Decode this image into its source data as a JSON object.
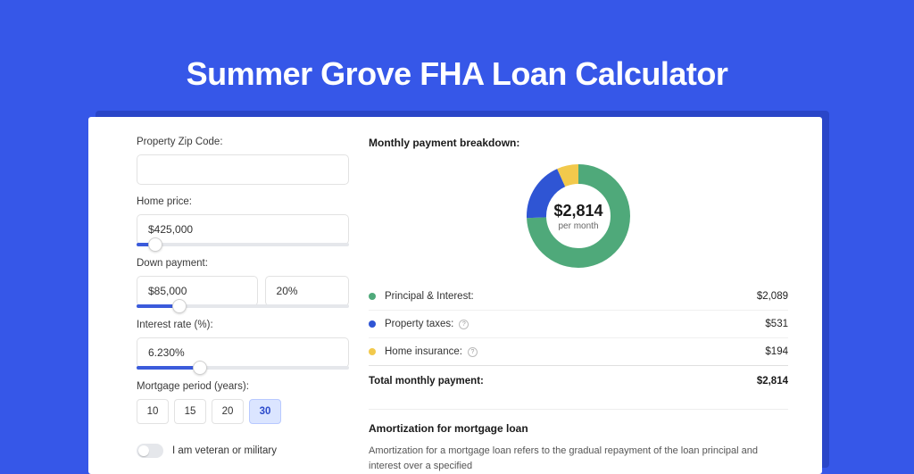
{
  "page": {
    "title": "Summer Grove FHA Loan Calculator",
    "background": "#3657e8"
  },
  "form": {
    "zip": {
      "label": "Property Zip Code:",
      "value": ""
    },
    "homePrice": {
      "label": "Home price:",
      "value": "$425,000",
      "sliderPct": 9
    },
    "downPayment": {
      "label": "Down payment:",
      "amount": "$85,000",
      "percent": "20%",
      "sliderPct": 20
    },
    "interestRate": {
      "label": "Interest rate (%):",
      "value": "6.230%",
      "sliderPct": 30
    },
    "period": {
      "label": "Mortgage period (years):",
      "options": [
        "10",
        "15",
        "20",
        "30"
      ],
      "selected": "30"
    },
    "veteran": {
      "label": "I am veteran or military",
      "checked": false
    }
  },
  "breakdown": {
    "title": "Monthly payment breakdown:",
    "donut": {
      "centerAmount": "$2,814",
      "centerSub": "per month",
      "segments": [
        {
          "color": "#4fa97a",
          "value": 2089
        },
        {
          "color": "#2f55d4",
          "value": 531
        },
        {
          "color": "#f2c94c",
          "value": 194
        }
      ]
    },
    "rows": [
      {
        "label": "Principal & Interest:",
        "value": "$2,089",
        "color": "#4fa97a",
        "info": false
      },
      {
        "label": "Property taxes:",
        "value": "$531",
        "color": "#2f55d4",
        "info": true
      },
      {
        "label": "Home insurance:",
        "value": "$194",
        "color": "#f2c94c",
        "info": true
      }
    ],
    "totalLabel": "Total monthly payment:",
    "totalValue": "$2,814"
  },
  "amortization": {
    "title": "Amortization for mortgage loan",
    "text": "Amortization for a mortgage loan refers to the gradual repayment of the loan principal and interest over a specified"
  }
}
